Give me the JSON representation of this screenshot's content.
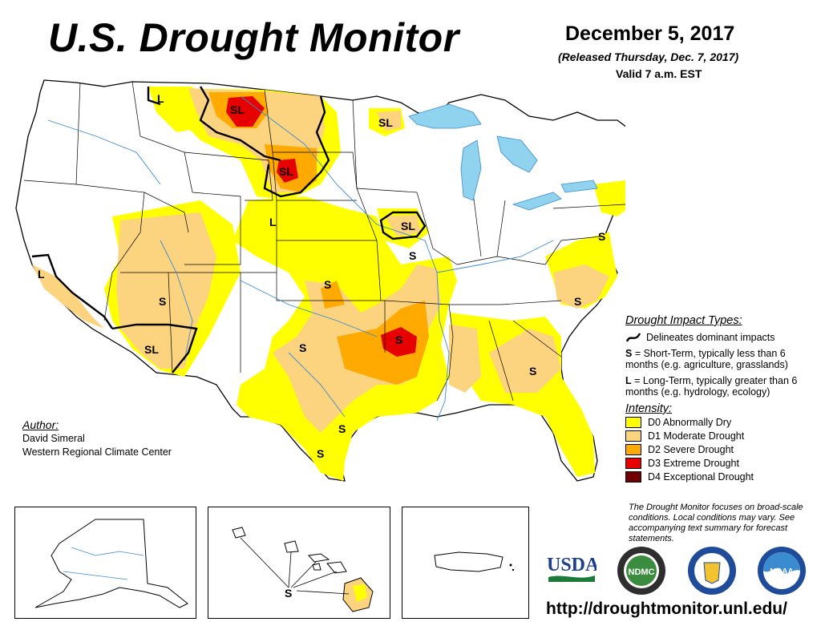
{
  "header": {
    "title": "U.S. Drought Monitor",
    "date": "December 5, 2017",
    "released": "(Released Thursday, Dec. 7, 2017)",
    "valid": "Valid 7 a.m. EST"
  },
  "map_labels": {
    "sl_montana": "SL",
    "sl_dakota": "SL",
    "sl_minnesota": "SL",
    "sl_iowa": "SL",
    "sl_arizona": "SL",
    "l_idaho": "L",
    "l_wyoming": "L",
    "l_california": "L",
    "s_ne": "S",
    "s_iowa": "S",
    "s_kansas": "S",
    "s_arizona": "S",
    "s_oklahoma": "S",
    "s_arkansas": "S",
    "s_texas1": "S",
    "s_texas2": "S",
    "s_georgia": "S",
    "s_carolina": "S",
    "s_hawaii": "S"
  },
  "legend": {
    "impact_heading": "Drought Impact Types:",
    "delineates": "Delineates dominant impacts",
    "s_key": "S",
    "s_text": " = Short-Term, typically less than 6 months (e.g. agriculture, grasslands)",
    "l_key": "L",
    "l_text": " = Long-Term, typically greater than 6 months (e.g. hydrology, ecology)",
    "intensity_heading": "Intensity:",
    "items": [
      {
        "label": "D0 Abnormally Dry",
        "color": "#ffff00"
      },
      {
        "label": "D1 Moderate Drought",
        "color": "#fcd37f"
      },
      {
        "label": "D2 Severe Drought",
        "color": "#ffaa00"
      },
      {
        "label": "D3 Extreme Drought",
        "color": "#e60000"
      },
      {
        "label": "D4 Exceptional Drought",
        "color": "#730000"
      }
    ]
  },
  "author": {
    "heading": "Author:",
    "name": "David Simeral",
    "org": "Western Regional Climate Center"
  },
  "note": "The Drought Monitor focuses on broad-scale conditions. Local conditions may vary. See accompanying text summary for forecast statements.",
  "logos": {
    "usda": "USDA",
    "ndmc": "NDMC",
    "noaa": "NOAA"
  },
  "url": "http://droughtmonitor.unl.edu/"
}
